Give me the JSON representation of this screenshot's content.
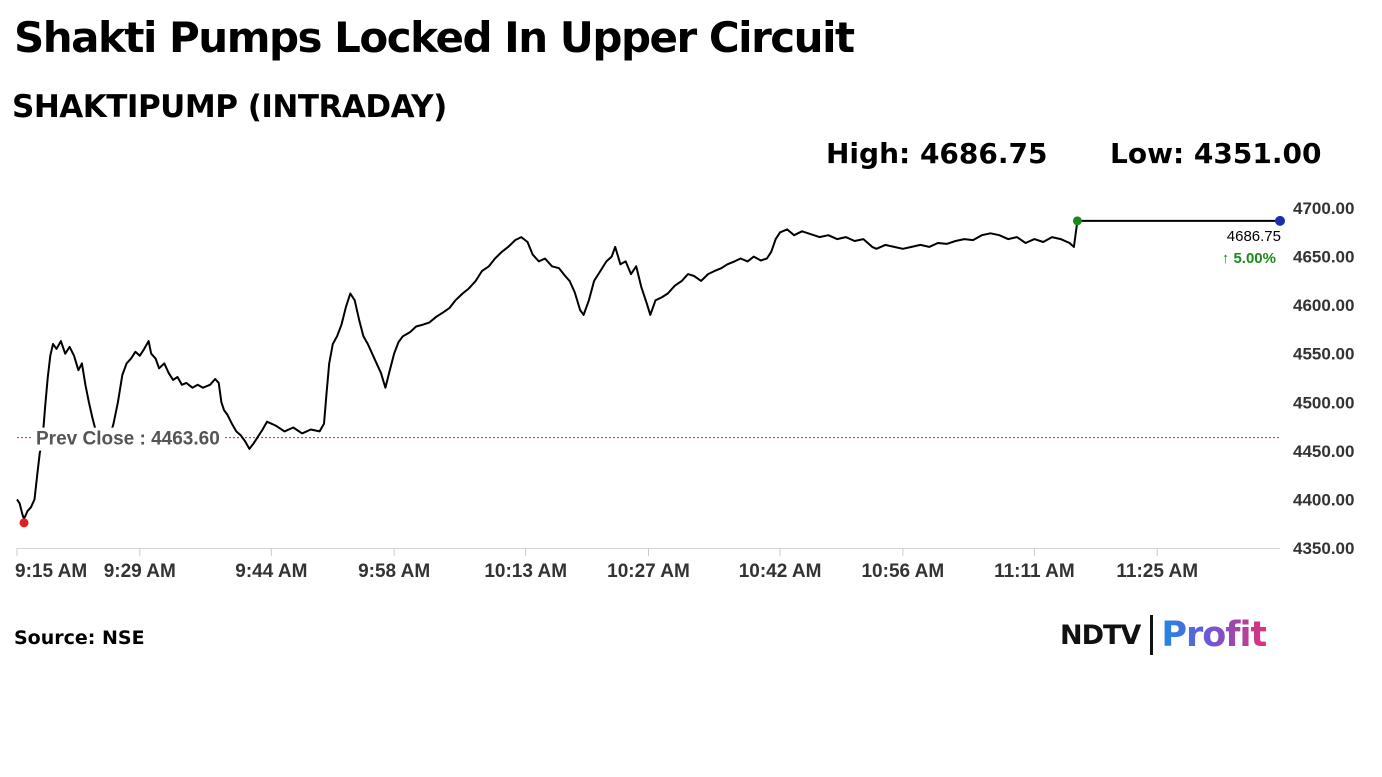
{
  "header": {
    "headline": "Shakti Pumps Locked In Upper Circuit",
    "subtitle": "SHAKTIPUMP (INTRADAY)",
    "high_label": "High: 4686.75",
    "low_label": "Low: 4351.00"
  },
  "chart_data": {
    "type": "line",
    "ylim": [
      4350,
      4700
    ],
    "yticks": [
      4700,
      4650,
      4600,
      4550,
      4500,
      4450,
      4400,
      4350
    ],
    "ytick_labels": [
      "4700.00",
      "4650.00",
      "4600.00",
      "4550.00",
      "4500.00",
      "4450.00",
      "4400.00",
      "4350.00"
    ],
    "x_minutes": [
      0,
      14,
      29,
      43,
      58,
      72,
      87,
      101,
      116,
      130
    ],
    "xtick_labels": [
      "9:15 AM",
      "9:29 AM",
      "9:44 AM",
      "9:58 AM",
      "10:13 AM",
      "10:27 AM",
      "10:42 AM",
      "10:56 AM",
      "11:11 AM",
      "11:25 AM"
    ],
    "xlim_minutes": [
      0,
      144
    ],
    "prev_close": 4463.6,
    "prev_close_label": "Prev Close : 4463.60",
    "last_price_label": "4686.75",
    "change_label": "5.00%",
    "grid": false,
    "colors": {
      "line": "#000000",
      "prev_close": "#e02020",
      "open_marker": "#e02020",
      "high_marker": "#1a8a1a",
      "last_marker": "#1a2fb0",
      "change": "#1a8a1a"
    },
    "series": [
      {
        "points": [
          [
            0.0,
            4400
          ],
          [
            0.3,
            4396
          ],
          [
            0.6,
            4385
          ],
          [
            0.8,
            4380
          ],
          [
            1.2,
            4388
          ],
          [
            1.6,
            4392
          ],
          [
            2.0,
            4400
          ],
          [
            2.3,
            4425
          ],
          [
            2.6,
            4448
          ],
          [
            2.9,
            4460
          ],
          [
            3.2,
            4495
          ],
          [
            3.5,
            4525
          ],
          [
            3.8,
            4548
          ],
          [
            4.1,
            4560
          ],
          [
            4.5,
            4555
          ],
          [
            5.0,
            4563
          ],
          [
            5.5,
            4550
          ],
          [
            6.0,
            4557
          ],
          [
            6.5,
            4548
          ],
          [
            7.0,
            4533
          ],
          [
            7.4,
            4540
          ],
          [
            7.8,
            4518
          ],
          [
            8.2,
            4500
          ],
          [
            8.6,
            4484
          ],
          [
            9.0,
            4470
          ],
          [
            9.5,
            4455
          ],
          [
            10.0,
            4452
          ],
          [
            10.5,
            4462
          ],
          [
            11.0,
            4478
          ],
          [
            11.5,
            4500
          ],
          [
            12.0,
            4528
          ],
          [
            12.5,
            4540
          ],
          [
            13.0,
            4545
          ],
          [
            13.5,
            4552
          ],
          [
            14.0,
            4548
          ],
          [
            14.5,
            4555
          ],
          [
            15.0,
            4563
          ],
          [
            15.3,
            4550
          ],
          [
            15.8,
            4545
          ],
          [
            16.2,
            4535
          ],
          [
            16.8,
            4540
          ],
          [
            17.3,
            4530
          ],
          [
            17.8,
            4523
          ],
          [
            18.3,
            4526
          ],
          [
            18.8,
            4518
          ],
          [
            19.3,
            4520
          ],
          [
            20.0,
            4515
          ],
          [
            20.6,
            4518
          ],
          [
            21.2,
            4515
          ],
          [
            22.0,
            4518
          ],
          [
            22.6,
            4524
          ],
          [
            23.0,
            4520
          ],
          [
            23.3,
            4500
          ],
          [
            23.6,
            4492
          ],
          [
            24.0,
            4487
          ],
          [
            24.5,
            4478
          ],
          [
            25.0,
            4470
          ],
          [
            25.5,
            4466
          ],
          [
            26.0,
            4460
          ],
          [
            26.5,
            4452
          ],
          [
            27.0,
            4458
          ],
          [
            27.5,
            4465
          ],
          [
            28.0,
            4472
          ],
          [
            28.5,
            4480
          ],
          [
            29.5,
            4476
          ],
          [
            30.5,
            4470
          ],
          [
            31.5,
            4474
          ],
          [
            32.5,
            4468
          ],
          [
            33.5,
            4472
          ],
          [
            34.5,
            4470
          ],
          [
            35.0,
            4478
          ],
          [
            35.3,
            4510
          ],
          [
            35.6,
            4540
          ],
          [
            36.0,
            4560
          ],
          [
            36.5,
            4568
          ],
          [
            37.0,
            4580
          ],
          [
            37.5,
            4598
          ],
          [
            38.0,
            4612
          ],
          [
            38.5,
            4605
          ],
          [
            39.0,
            4585
          ],
          [
            39.5,
            4568
          ],
          [
            40.0,
            4560
          ],
          [
            40.5,
            4550
          ],
          [
            41.0,
            4540
          ],
          [
            41.5,
            4530
          ],
          [
            42.0,
            4515
          ],
          [
            42.5,
            4533
          ],
          [
            43.0,
            4550
          ],
          [
            43.5,
            4562
          ],
          [
            44.0,
            4568
          ],
          [
            44.8,
            4572
          ],
          [
            45.5,
            4578
          ],
          [
            46.3,
            4580
          ],
          [
            47.0,
            4582
          ],
          [
            47.8,
            4588
          ],
          [
            48.5,
            4592
          ],
          [
            49.3,
            4597
          ],
          [
            50.0,
            4605
          ],
          [
            50.8,
            4612
          ],
          [
            51.5,
            4617
          ],
          [
            52.3,
            4625
          ],
          [
            53.0,
            4635
          ],
          [
            53.8,
            4640
          ],
          [
            54.5,
            4648
          ],
          [
            55.3,
            4655
          ],
          [
            56.0,
            4660
          ],
          [
            56.8,
            4667
          ],
          [
            57.5,
            4670
          ],
          [
            58.2,
            4665
          ],
          [
            58.8,
            4652
          ],
          [
            59.5,
            4645
          ],
          [
            60.2,
            4648
          ],
          [
            61.0,
            4640
          ],
          [
            61.8,
            4638
          ],
          [
            62.5,
            4630
          ],
          [
            63.0,
            4625
          ],
          [
            63.6,
            4613
          ],
          [
            64.2,
            4595
          ],
          [
            64.6,
            4590
          ],
          [
            65.2,
            4605
          ],
          [
            65.8,
            4625
          ],
          [
            66.5,
            4635
          ],
          [
            67.2,
            4645
          ],
          [
            67.8,
            4650
          ],
          [
            68.2,
            4660
          ],
          [
            68.8,
            4642
          ],
          [
            69.4,
            4645
          ],
          [
            70.0,
            4632
          ],
          [
            70.6,
            4640
          ],
          [
            71.2,
            4618
          ],
          [
            71.8,
            4602
          ],
          [
            72.2,
            4590
          ],
          [
            72.8,
            4605
          ],
          [
            73.5,
            4608
          ],
          [
            74.2,
            4612
          ],
          [
            75.0,
            4620
          ],
          [
            75.8,
            4625
          ],
          [
            76.5,
            4632
          ],
          [
            77.2,
            4630
          ],
          [
            78.0,
            4625
          ],
          [
            78.8,
            4632
          ],
          [
            79.5,
            4635
          ],
          [
            80.3,
            4638
          ],
          [
            81.0,
            4642
          ],
          [
            81.8,
            4645
          ],
          [
            82.5,
            4648
          ],
          [
            83.3,
            4645
          ],
          [
            84.0,
            4650
          ],
          [
            84.8,
            4646
          ],
          [
            85.5,
            4648
          ],
          [
            86.0,
            4655
          ],
          [
            86.5,
            4668
          ],
          [
            87.0,
            4675
          ],
          [
            87.8,
            4678
          ],
          [
            88.6,
            4672
          ],
          [
            89.5,
            4676
          ],
          [
            90.5,
            4673
          ],
          [
            91.5,
            4670
          ],
          [
            92.5,
            4672
          ],
          [
            93.5,
            4668
          ],
          [
            94.5,
            4670
          ],
          [
            95.5,
            4666
          ],
          [
            96.5,
            4668
          ],
          [
            97.5,
            4660
          ],
          [
            98.0,
            4658
          ],
          [
            99.0,
            4662
          ],
          [
            100.0,
            4660
          ],
          [
            101.0,
            4658
          ],
          [
            102.0,
            4660
          ],
          [
            103.0,
            4662
          ],
          [
            104.0,
            4660
          ],
          [
            105.0,
            4664
          ],
          [
            106.0,
            4663
          ],
          [
            107.0,
            4666
          ],
          [
            108.0,
            4668
          ],
          [
            109.0,
            4667
          ],
          [
            110.0,
            4672
          ],
          [
            111.0,
            4674
          ],
          [
            112.0,
            4672
          ],
          [
            113.0,
            4668
          ],
          [
            114.0,
            4670
          ],
          [
            115.0,
            4664
          ],
          [
            116.0,
            4668
          ],
          [
            117.0,
            4665
          ],
          [
            118.0,
            4670
          ],
          [
            119.0,
            4668
          ],
          [
            120.0,
            4664
          ],
          [
            120.5,
            4660
          ],
          [
            120.9,
            4686.75
          ],
          [
            121.5,
            4686.75
          ],
          [
            128.0,
            4686.75
          ],
          [
            132.0,
            4686.75
          ],
          [
            136.0,
            4686.75
          ],
          [
            140.0,
            4686.75
          ],
          [
            144.0,
            4686.75
          ]
        ]
      }
    ]
  },
  "footer": {
    "source": "Source: NSE",
    "logo_left": "NDTV",
    "logo_right": "Profit"
  }
}
